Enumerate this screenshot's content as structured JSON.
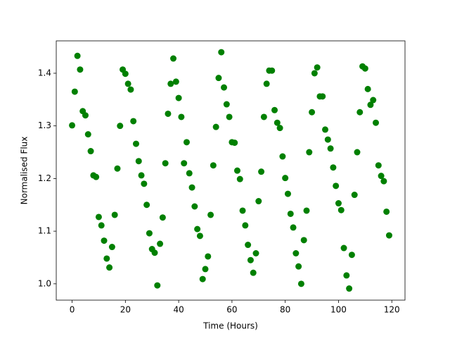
{
  "chart_data": {
    "type": "scatter",
    "x_label": "Time (Hours)",
    "y_label": "Normalised Flux",
    "color": "#008000",
    "x": [
      0,
      1,
      2,
      3,
      4,
      5,
      6,
      7,
      8,
      9,
      10,
      11,
      12,
      13,
      14,
      15,
      16,
      17,
      18,
      19,
      20,
      21,
      22,
      23,
      24,
      25,
      26,
      27,
      28,
      29,
      30,
      31,
      32,
      33,
      34,
      35,
      36,
      37,
      38,
      39,
      40,
      41,
      42,
      43,
      44,
      45,
      46,
      47,
      48,
      49,
      50,
      51,
      52,
      53,
      54,
      55,
      56,
      57,
      58,
      59,
      60,
      61,
      62,
      63,
      64,
      65,
      66,
      67,
      68,
      69,
      70,
      71,
      72,
      73,
      74,
      75,
      76,
      77,
      78,
      79,
      80,
      81,
      82,
      83,
      84,
      85,
      86,
      87,
      88,
      89,
      90,
      91,
      92,
      93,
      94,
      95,
      96,
      97,
      98,
      99,
      100,
      101,
      102,
      103,
      104,
      105,
      106,
      107,
      108,
      109,
      110,
      111,
      112,
      113,
      114,
      115,
      116,
      117,
      118,
      119
    ],
    "values": [
      1.301,
      1.365,
      1.433,
      1.407,
      1.328,
      1.32,
      1.284,
      1.252,
      1.206,
      1.203,
      1.127,
      1.111,
      1.082,
      1.048,
      1.031,
      1.07,
      1.131,
      1.219,
      1.3,
      1.407,
      1.399,
      1.38,
      1.369,
      1.309,
      1.266,
      1.233,
      1.206,
      1.19,
      1.15,
      1.096,
      1.066,
      1.059,
      0.997,
      1.076,
      1.126,
      1.229,
      1.323,
      1.38,
      1.428,
      1.384,
      1.353,
      1.317,
      1.229,
      1.269,
      1.21,
      1.183,
      1.147,
      1.104,
      1.091,
      1.009,
      1.028,
      1.052,
      1.131,
      1.225,
      1.298,
      1.391,
      1.44,
      1.373,
      1.341,
      1.317,
      1.269,
      1.268,
      1.215,
      1.199,
      1.139,
      1.111,
      1.074,
      1.045,
      1.021,
      1.058,
      1.157,
      1.213,
      1.317,
      1.38,
      1.405,
      1.405,
      1.33,
      1.306,
      1.296,
      1.242,
      1.201,
      1.171,
      1.133,
      1.107,
      1.058,
      1.033,
      1.0,
      1.083,
      1.139,
      1.25,
      1.326,
      1.4,
      1.411,
      1.356,
      1.356,
      1.293,
      1.274,
      1.257,
      1.221,
      1.186,
      1.153,
      1.14,
      1.068,
      1.016,
      0.991,
      1.055,
      1.169,
      1.25,
      1.326,
      1.413,
      1.409,
      1.37,
      1.34,
      1.349,
      1.306,
      1.225,
      1.205,
      1.195,
      1.137,
      1.092
    ],
    "xlim": [
      -5.95,
      124.95
    ],
    "ylim": [
      0.969,
      1.4615
    ],
    "xticks": [
      0,
      20,
      40,
      60,
      80,
      100,
      120
    ],
    "yticks": [
      {
        "value": 1.0,
        "label": "1.0"
      },
      1.1,
      1.2,
      1.3,
      1.4
    ]
  }
}
